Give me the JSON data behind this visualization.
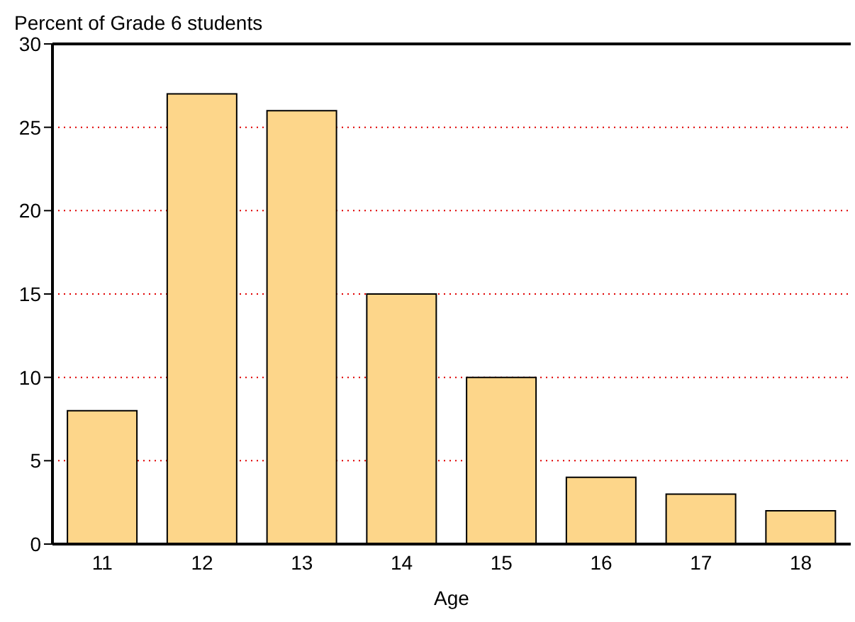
{
  "chart_data": {
    "type": "bar",
    "xlabel": "Age",
    "ylabel": "Percent of Grade 6 students",
    "categories": [
      "11",
      "12",
      "13",
      "14",
      "15",
      "16",
      "17",
      "18"
    ],
    "values": [
      8,
      27,
      26,
      15,
      10,
      4,
      3,
      2
    ],
    "color": "#fdd68a",
    "ylim": [
      0,
      30
    ],
    "yticks": [
      0,
      5,
      10,
      15,
      20,
      25,
      30
    ],
    "grid": "y"
  }
}
